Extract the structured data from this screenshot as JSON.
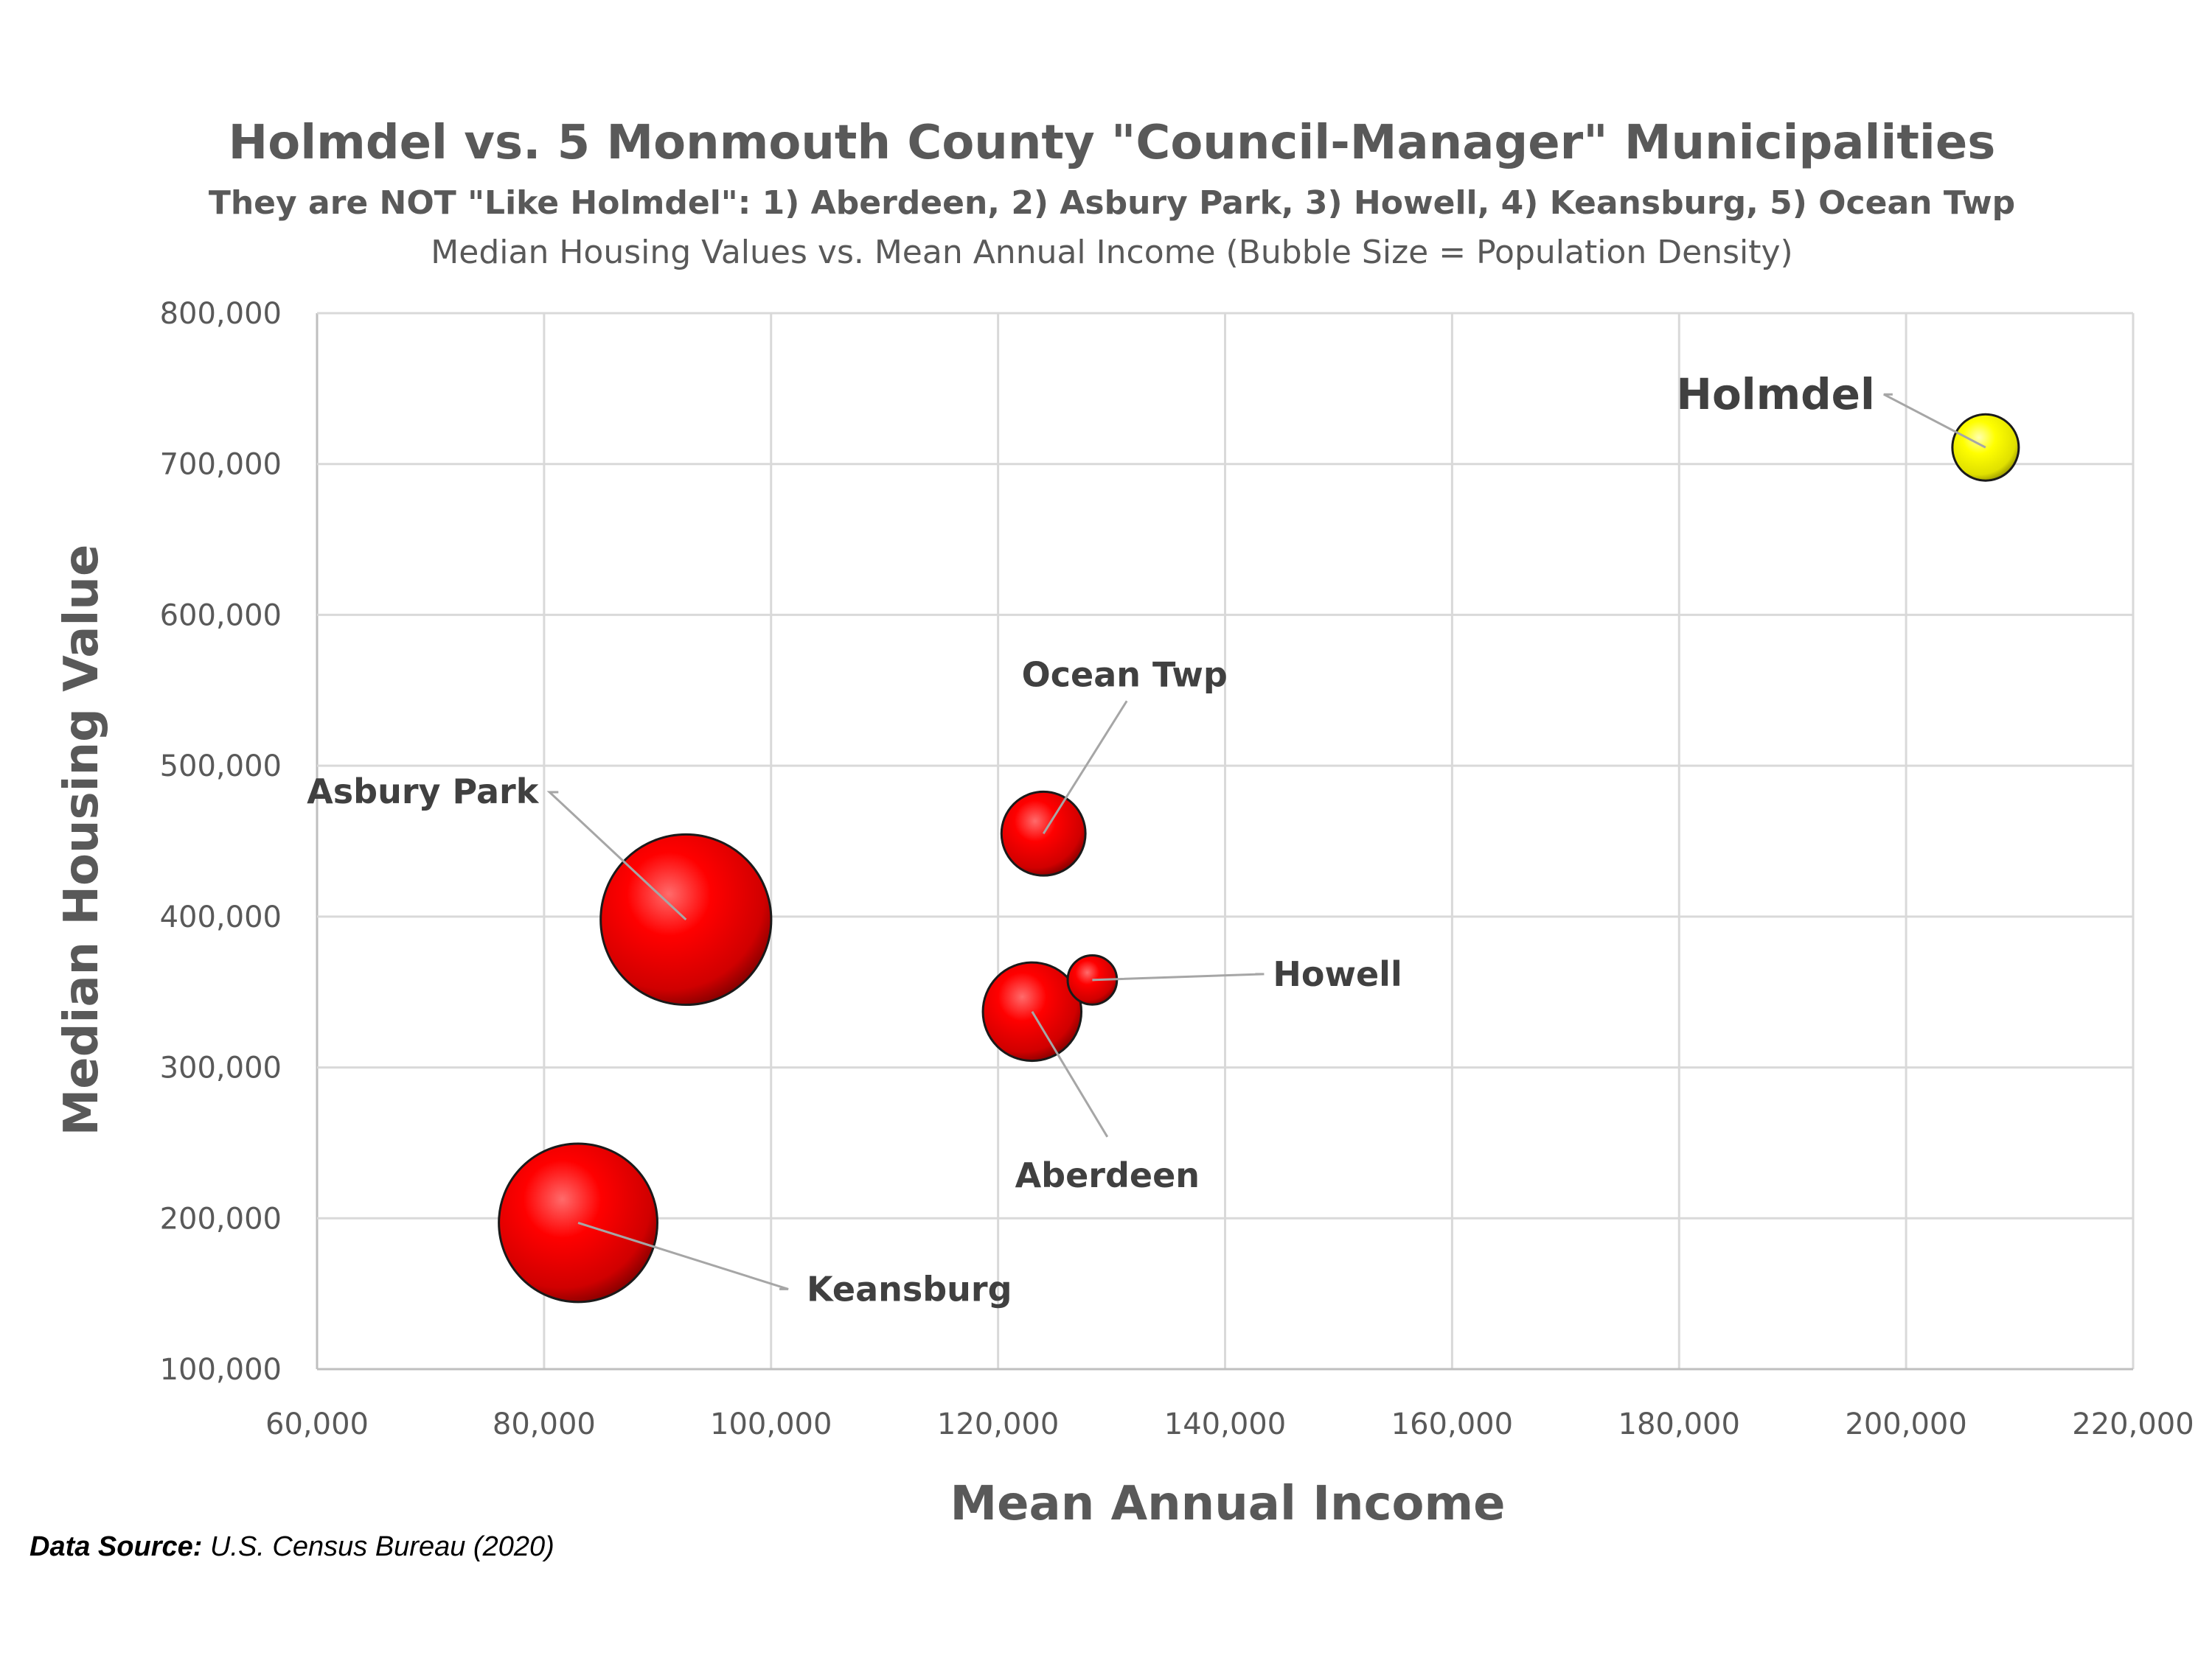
{
  "chart_data": {
    "type": "bubble",
    "title": "Holmdel vs. 5 Monmouth County \"Council-Manager\" Municipalities",
    "subtitle": "They are NOT \"Like Holmdel\": 1) Aberdeen, 2) Asbury Park, 3) Howell, 4) Keansburg, 5) Ocean Twp",
    "subtitle2": "Median Housing Values vs. Mean Annual Income (Bubble Size = Population Density)",
    "xlabel": "Mean Annual Income",
    "ylabel": "Median Housing Value",
    "xlim": [
      60000,
      220000
    ],
    "ylim": [
      100000,
      800000
    ],
    "x_ticks": [
      "60,000",
      "80,000",
      "100,000",
      "120,000",
      "140,000",
      "160,000",
      "180,000",
      "200,000",
      "220,000"
    ],
    "y_ticks": [
      "100,000",
      "200,000",
      "300,000",
      "400,000",
      "500,000",
      "600,000",
      "700,000",
      "800,000"
    ],
    "grid": true,
    "colors": {
      "default": "#ff0000",
      "highlight": "#ffff00"
    },
    "points": [
      {
        "label": "Holmdel",
        "x": 207000,
        "y": 711000,
        "size": 1.0,
        "color": "#ffff00"
      },
      {
        "label": "Ocean Twp",
        "x": 124000,
        "y": 455000,
        "size": 1.6
      },
      {
        "label": "Asbury Park",
        "x": 92500,
        "y": 398000,
        "size": 6.6
      },
      {
        "label": "Howell",
        "x": 128300,
        "y": 358000,
        "size": 0.55
      },
      {
        "label": "Aberdeen",
        "x": 123000,
        "y": 337000,
        "size": 2.2
      },
      {
        "label": "Keansburg",
        "x": 83000,
        "y": 197000,
        "size": 5.7
      }
    ]
  },
  "footer": {
    "source_label": "Data Source:",
    "source_text": " U.S. Census Bureau (2020)"
  }
}
